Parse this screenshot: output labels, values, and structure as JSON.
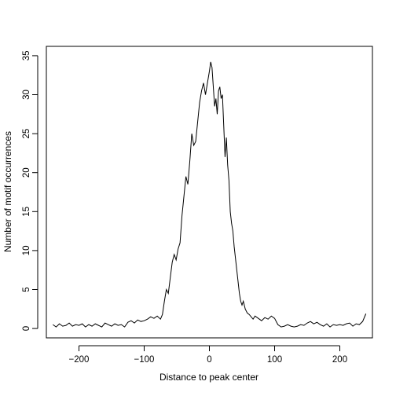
{
  "chart_data": {
    "type": "line",
    "title": "",
    "xlabel": "Distance to peak center",
    "ylabel": "Number of motif occurrences",
    "xlim": [
      -250,
      250
    ],
    "ylim": [
      -1.2,
      36.2
    ],
    "xticks": [
      -200,
      -100,
      0,
      100,
      200
    ],
    "yticks": [
      0,
      5,
      10,
      15,
      20,
      25,
      30,
      35
    ],
    "xtick_labels": [
      "−200",
      "−100",
      "0",
      "100",
      "200"
    ],
    "ytick_labels": [
      "0",
      "5",
      "10",
      "15",
      "20",
      "25",
      "30",
      "35"
    ],
    "grid": false,
    "legend": "none",
    "line_color": "#000000",
    "series": [
      {
        "x": [
          -240,
          -235,
          -230,
          -225,
          -220,
          -215,
          -210,
          -205,
          -200,
          -195,
          -190,
          -185,
          -180,
          -175,
          -170,
          -165,
          -160,
          -155,
          -150,
          -145,
          -140,
          -135,
          -130,
          -125,
          -120,
          -115,
          -110,
          -105,
          -100,
          -95,
          -90,
          -85,
          -80,
          -75,
          -72,
          -69,
          -66,
          -63,
          -60,
          -57,
          -54,
          -51,
          -48,
          -45,
          -42,
          -39,
          -36,
          -33,
          -30,
          -27,
          -24,
          -21,
          -18,
          -15,
          -12,
          -9,
          -6,
          -3,
          0,
          2,
          4,
          6,
          8,
          10,
          12,
          14,
          16,
          18,
          20,
          22,
          24,
          26,
          28,
          30,
          32,
          34,
          36,
          38,
          40,
          42,
          44,
          46,
          48,
          50,
          52,
          55,
          58,
          61,
          64,
          67,
          70,
          75,
          80,
          85,
          90,
          95,
          100,
          105,
          110,
          115,
          120,
          125,
          130,
          135,
          140,
          145,
          150,
          155,
          160,
          165,
          170,
          175,
          180,
          185,
          190,
          195,
          200,
          205,
          210,
          215,
          220,
          225,
          230,
          235,
          240
        ],
        "y": [
          0.5,
          0.2,
          0.6,
          0.3,
          0.4,
          0.7,
          0.3,
          0.5,
          0.4,
          0.6,
          0.2,
          0.5,
          0.3,
          0.6,
          0.4,
          0.2,
          0.7,
          0.5,
          0.3,
          0.6,
          0.4,
          0.5,
          0.2,
          0.8,
          1.0,
          0.7,
          1.1,
          0.9,
          1.0,
          1.2,
          1.5,
          1.3,
          1.6,
          1.2,
          1.8,
          3.5,
          5.0,
          4.5,
          6.5,
          8.5,
          9.5,
          8.8,
          10.2,
          11.0,
          14.5,
          17.0,
          19.5,
          18.5,
          21.5,
          25.0,
          23.5,
          24.0,
          26.5,
          29.0,
          30.5,
          31.5,
          30.0,
          31.5,
          33.0,
          34.2,
          33.5,
          31.0,
          28.5,
          29.5,
          27.5,
          30.5,
          31.0,
          29.5,
          30.0,
          26.0,
          22.0,
          24.5,
          21.0,
          19.0,
          15.0,
          13.5,
          12.5,
          10.5,
          9.0,
          7.5,
          6.0,
          4.5,
          3.5,
          3.0,
          3.5,
          2.5,
          2.0,
          1.8,
          1.5,
          1.2,
          1.6,
          1.3,
          1.0,
          1.4,
          1.2,
          1.6,
          1.3,
          0.5,
          0.2,
          0.3,
          0.5,
          0.3,
          0.2,
          0.3,
          0.5,
          0.4,
          0.7,
          0.9,
          0.6,
          0.8,
          0.5,
          0.3,
          0.6,
          0.2,
          0.5,
          0.4,
          0.5,
          0.4,
          0.6,
          0.7,
          0.3,
          0.6,
          0.5,
          0.9,
          1.9
        ]
      }
    ]
  }
}
